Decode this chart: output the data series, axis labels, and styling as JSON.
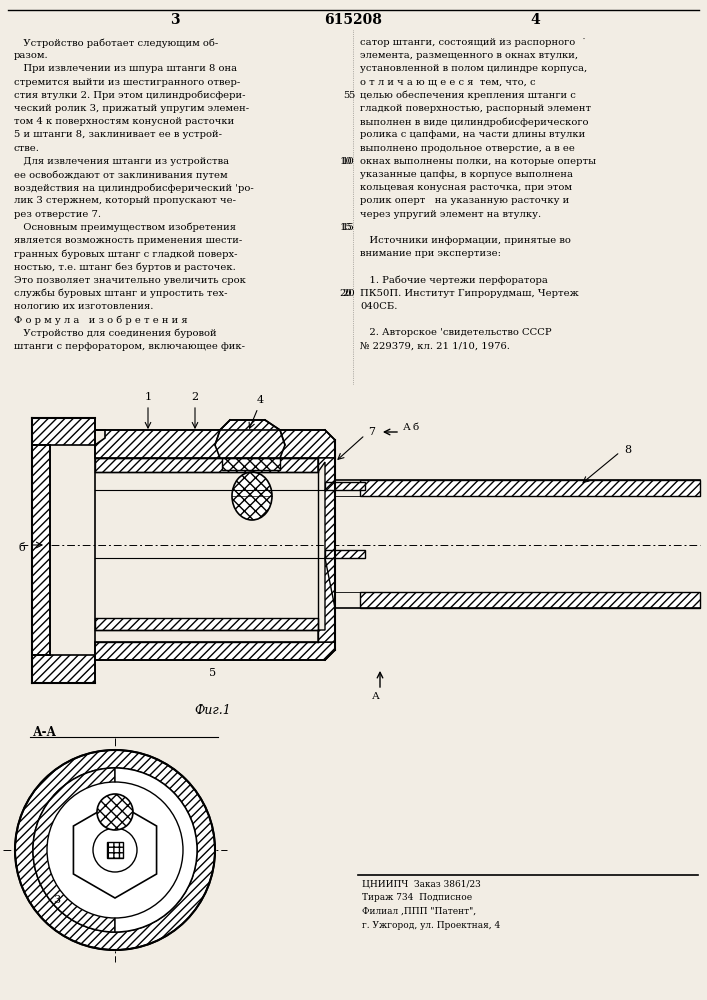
{
  "patent_number": "615208",
  "page_left": "3",
  "page_right": "4",
  "bg_color": "#f2ede4",
  "text_color": "#111111",
  "left_col_lines": [
    "   Устройство работает следующим об-",
    "разом.",
    "   При извлечении из шпура штанги 8 она",
    "стремится выйти из шестигранного отвер-",
    "стия втулки 2. При этом цилиндробисфери-",
    "ческий ролик 3, прижатый упругим элемен-",
    "том 4 к поверхностям конусной расточки",
    "5 и штанги 8, заклинивает ее в устрой-",
    "стве.",
    "   Для извлечения штанги из устройства",
    "ее освобождают от заклинивания путем",
    "воздействия на цилиндробисферический 'ро-",
    "лик 3 стержнем, который пропускают че-",
    "рез отверстие 7.",
    "   Основным преимуществом изобретения",
    "является возможность применения шести-",
    "гранных буровых штанг с гладкой поверх-",
    "ностью, т.е. штанг без буртов и расточек.",
    "Это позволяет значительно увеличить срок",
    "службы буровых штанг и упростить тех-",
    "нологию их изготовления.",
    "Ф о р м у л а   и з о б р е т е н и я",
    "   Устройство для соединения буровой",
    "штанги с перфоратором, включающее фик-"
  ],
  "right_col_lines": [
    "сатор штанги, состоящий из распорного  ˙",
    "элемента, размещенного в окнах втулки,",
    "установленной в полом цилиндре корпуса,",
    "о т л и ч а ю щ е е с я  тем, что, с",
    "целью обеспечения крепления штанги с",
    "гладкой поверхностью, распорный элемент",
    "выполнен в виде цилиндробисферического",
    "ролика с цапфами, на части длины втулки",
    "выполнено продольное отверстие, а в ее",
    "окнах выполнены полки, на которые оперты",
    "указанные цапфы, в корпусе выполнена",
    "кольцевая конусная расточка, при этом",
    "ролик оперт   на указанную расточку и",
    "через упругий элемент на втулку.",
    "",
    "   Источники информации, принятые во",
    "внимание при экспертизе:",
    "",
    "   1. Рабочие чертежи перфоратора",
    "ПК50П. Институт Гипрорудмаш, Чертеж",
    "040СБ.",
    "",
    "   2. Авторское 'свидетельство СССР",
    "№ 229379, кл. 21 1/10, 1976."
  ],
  "line_nums": [
    5,
    10,
    15,
    20
  ],
  "bottom_text": [
    "ЦНИИПЧ  Заказ 3861/23",
    "Тираж 734  Подписное",
    "Филиал ,ППП \"Патент\",",
    "г. Ужгород, ул. Проектная, 4"
  ],
  "fig_label": "Фиг.1",
  "aa_label": "А-А"
}
